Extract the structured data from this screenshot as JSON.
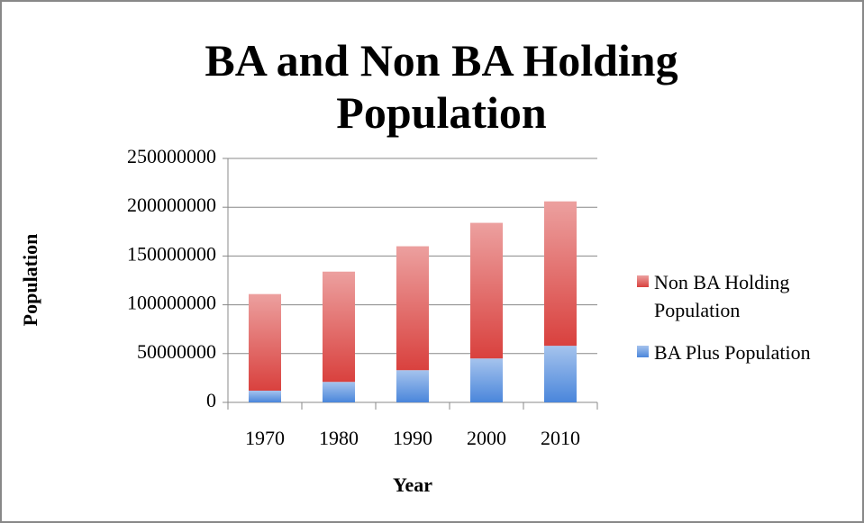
{
  "chart_data": {
    "type": "stacked-bar",
    "title": "BA and Non BA Holding Population",
    "x_label": "Year",
    "y_label": "Population",
    "categories": [
      "1970",
      "1980",
      "1990",
      "2000",
      "2010"
    ],
    "series": [
      {
        "name": "BA Plus Population",
        "color": "#4a86db",
        "values": [
          12000000,
          21000000,
          33000000,
          45000000,
          58000000
        ]
      },
      {
        "name": "Non BA Holding Population",
        "color": "#d9413e",
        "values": [
          99000000,
          113000000,
          127000000,
          139000000,
          148000000
        ]
      }
    ],
    "ylim": [
      0,
      250000000
    ],
    "yticks": [
      0,
      50000000,
      100000000,
      150000000,
      200000000,
      250000000
    ],
    "grid": true,
    "legend": "right"
  }
}
